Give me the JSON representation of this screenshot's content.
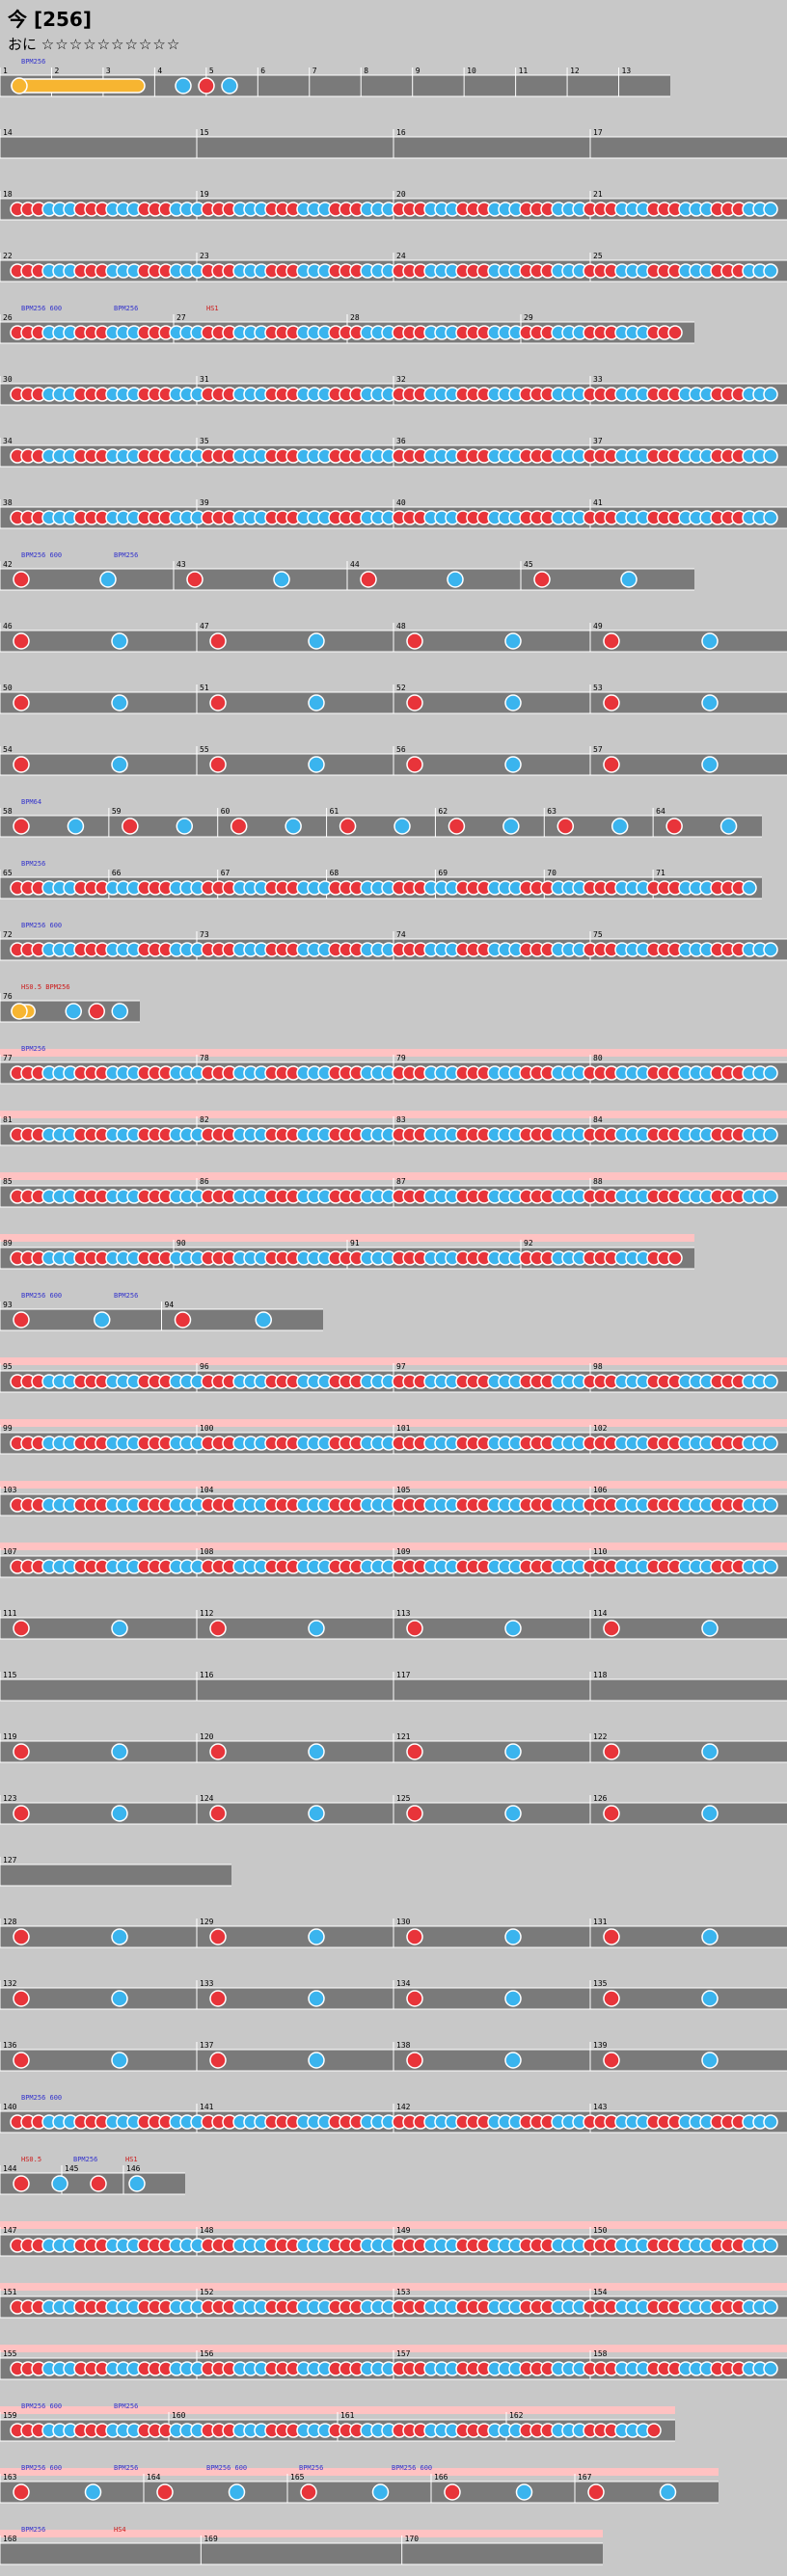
{
  "song": {
    "title": "今 [256]",
    "course_label": "おに",
    "stars": "☆☆☆☆☆☆☆☆☆☆"
  },
  "colors": {
    "don": "#e8343a",
    "ka": "#3ab4ee",
    "drumroll": "#f7b531",
    "bg": "#c8c8c8",
    "lane": "#7a7a7a",
    "gogo": "#ffc2c2",
    "bpm_text": "#3333cc",
    "event_text": "#cc1a1a"
  },
  "rows": [
    {
      "label": "r1",
      "measures": [
        "1",
        "2",
        "3",
        "4",
        "5",
        "6",
        "7",
        "8",
        "9",
        "10",
        "11",
        "12",
        "13"
      ],
      "pattern": "R",
      "gogo": false,
      "events": [
        {
          "text": "BPM256",
          "kind": "bpm"
        }
      ]
    },
    {
      "label": "r2",
      "measures": [
        "14",
        "15",
        "16",
        "17"
      ],
      "pattern": "E",
      "gogo": false,
      "events": []
    },
    {
      "label": "r3",
      "measures": [
        "18",
        "19",
        "20",
        "21"
      ],
      "pattern": "D",
      "gogo": false,
      "events": []
    },
    {
      "label": "r4",
      "measures": [
        "22",
        "23",
        "24",
        "25"
      ],
      "pattern": "D",
      "gogo": false,
      "events": []
    },
    {
      "label": "r5",
      "measures": [
        "26",
        "27",
        "28",
        "29"
      ],
      "pattern": "D",
      "gogo": false,
      "events": [
        {
          "text": "BPM256 600",
          "kind": "bpm"
        },
        {
          "text": "BPM256",
          "kind": "bpm"
        },
        {
          "text": "HS1",
          "kind": "hs"
        }
      ]
    },
    {
      "label": "r6",
      "measures": [
        "30",
        "31",
        "32",
        "33"
      ],
      "pattern": "D",
      "gogo": false,
      "events": []
    },
    {
      "label": "r7",
      "measures": [
        "34",
        "35",
        "36",
        "37"
      ],
      "pattern": "D",
      "gogo": false,
      "events": []
    },
    {
      "label": "r8",
      "measures": [
        "38",
        "39",
        "40",
        "41"
      ],
      "pattern": "D",
      "gogo": false,
      "events": []
    },
    {
      "label": "r9",
      "measures": [
        "42",
        "43",
        "44",
        "45"
      ],
      "pattern": "S",
      "gogo": false,
      "events": [
        {
          "text": "BPM256 600",
          "kind": "bpm"
        },
        {
          "text": "BPM256",
          "kind": "bpm"
        }
      ]
    },
    {
      "label": "r10",
      "measures": [
        "46",
        "47",
        "48",
        "49"
      ],
      "pattern": "S",
      "gogo": false,
      "events": []
    },
    {
      "label": "r11",
      "measures": [
        "50",
        "51",
        "52",
        "53"
      ],
      "pattern": "S",
      "gogo": false,
      "events": []
    },
    {
      "label": "r12",
      "measures": [
        "54",
        "55",
        "56",
        "57"
      ],
      "pattern": "S",
      "gogo": false,
      "events": []
    },
    {
      "label": "r13",
      "measures": [
        "58",
        "59",
        "60",
        "61",
        "62",
        "63",
        "64"
      ],
      "pattern": "S",
      "gogo": false,
      "events": [
        {
          "text": "BPM64",
          "kind": "bpm"
        }
      ]
    },
    {
      "label": "r14",
      "measures": [
        "65",
        "66",
        "67",
        "68",
        "69",
        "70",
        "71"
      ],
      "pattern": "D",
      "gogo": false,
      "events": [
        {
          "text": "BPM256",
          "kind": "bpm"
        }
      ]
    },
    {
      "label": "r15",
      "measures": [
        "72",
        "73",
        "74",
        "75"
      ],
      "pattern": "D",
      "gogo": false,
      "events": [
        {
          "text": "BPM256 600",
          "kind": "bpm"
        }
      ]
    },
    {
      "label": "r16",
      "measures": [
        "76"
      ],
      "pattern": "R",
      "gogo": false,
      "events": [
        {
          "text": "HS0.5 BPM256",
          "kind": "hs"
        }
      ]
    },
    {
      "label": "r17",
      "measures": [
        "77",
        "78",
        "79",
        "80"
      ],
      "pattern": "D",
      "gogo": true,
      "events": [
        {
          "text": "BPM256",
          "kind": "bpm"
        }
      ]
    },
    {
      "label": "r18",
      "measures": [
        "81",
        "82",
        "83",
        "84"
      ],
      "pattern": "D",
      "gogo": true,
      "events": []
    },
    {
      "label": "r19",
      "measures": [
        "85",
        "86",
        "87",
        "88"
      ],
      "pattern": "D",
      "gogo": true,
      "events": []
    },
    {
      "label": "r20",
      "measures": [
        "89",
        "90",
        "91",
        "92"
      ],
      "pattern": "D",
      "gogo": true,
      "events": []
    },
    {
      "label": "r21",
      "measures": [
        "93",
        "94"
      ],
      "pattern": "S",
      "gogo": false,
      "events": [
        {
          "text": "BPM256 600",
          "kind": "bpm"
        },
        {
          "text": "BPM256",
          "kind": "bpm"
        }
      ]
    },
    {
      "label": "r22",
      "measures": [
        "95",
        "96",
        "97",
        "98"
      ],
      "pattern": "D",
      "gogo": true,
      "events": []
    },
    {
      "label": "r23",
      "measures": [
        "99",
        "100",
        "101",
        "102"
      ],
      "pattern": "D",
      "gogo": true,
      "events": []
    },
    {
      "label": "r24",
      "measures": [
        "103",
        "104",
        "105",
        "106"
      ],
      "pattern": "D",
      "gogo": true,
      "events": []
    },
    {
      "label": "r25",
      "measures": [
        "107",
        "108",
        "109",
        "110"
      ],
      "pattern": "D",
      "gogo": true,
      "events": []
    },
    {
      "label": "r26",
      "measures": [
        "111",
        "112",
        "113",
        "114"
      ],
      "pattern": "S",
      "gogo": false,
      "events": []
    },
    {
      "label": "r27",
      "measures": [
        "115",
        "116",
        "117",
        "118"
      ],
      "pattern": "E",
      "gogo": false,
      "events": []
    },
    {
      "label": "r28",
      "measures": [
        "119",
        "120",
        "121",
        "122"
      ],
      "pattern": "S",
      "gogo": false,
      "events": []
    },
    {
      "label": "r29",
      "measures": [
        "123",
        "124",
        "125",
        "126"
      ],
      "pattern": "S",
      "gogo": false,
      "events": []
    },
    {
      "label": "r30",
      "measures": [
        "127"
      ],
      "pattern": "E",
      "gogo": false,
      "events": []
    },
    {
      "label": "r31",
      "measures": [
        "128",
        "129",
        "130",
        "131"
      ],
      "pattern": "S",
      "gogo": false,
      "events": []
    },
    {
      "label": "r32",
      "measures": [
        "132",
        "133",
        "134",
        "135"
      ],
      "pattern": "S",
      "gogo": false,
      "events": []
    },
    {
      "label": "r33",
      "measures": [
        "136",
        "137",
        "138",
        "139"
      ],
      "pattern": "S",
      "gogo": false,
      "events": []
    },
    {
      "label": "r34",
      "measures": [
        "140",
        "141",
        "142",
        "143"
      ],
      "pattern": "D",
      "gogo": false,
      "events": [
        {
          "text": "BPM256 600",
          "kind": "bpm"
        }
      ]
    },
    {
      "label": "r35",
      "measures": [
        "144",
        "145",
        "146"
      ],
      "pattern": "S",
      "gogo": false,
      "events": [
        {
          "text": "HS0.5",
          "kind": "hs"
        },
        {
          "text": "BPM256",
          "kind": "bpm"
        },
        {
          "text": "HS1",
          "kind": "hs"
        }
      ]
    },
    {
      "label": "r36",
      "measures": [
        "147",
        "148",
        "149",
        "150"
      ],
      "pattern": "D",
      "gogo": true,
      "events": []
    },
    {
      "label": "r37",
      "measures": [
        "151",
        "152",
        "153",
        "154"
      ],
      "pattern": "D",
      "gogo": true,
      "events": []
    },
    {
      "label": "r38",
      "measures": [
        "155",
        "156",
        "157",
        "158"
      ],
      "pattern": "D",
      "gogo": true,
      "events": []
    },
    {
      "label": "r39",
      "measures": [
        "159",
        "160",
        "161",
        "162"
      ],
      "pattern": "D",
      "gogo": true,
      "events": [
        {
          "text": "BPM256 600",
          "kind": "bpm"
        },
        {
          "text": "BPM256",
          "kind": "bpm"
        }
      ]
    },
    {
      "label": "r40",
      "measures": [
        "163",
        "164",
        "165",
        "166",
        "167"
      ],
      "pattern": "S",
      "gogo": true,
      "events": [
        {
          "text": "BPM256 600",
          "kind": "bpm"
        },
        {
          "text": "BPM256",
          "kind": "bpm"
        },
        {
          "text": "BPM256 600",
          "kind": "bpm"
        },
        {
          "text": "BPM256",
          "kind": "bpm"
        },
        {
          "text": "BPM256 600",
          "kind": "bpm"
        }
      ]
    },
    {
      "label": "r41",
      "measures": [
        "168",
        "169",
        "170"
      ],
      "pattern": "E",
      "gogo": true,
      "events": [
        {
          "text": "BPM256",
          "kind": "bpm"
        },
        {
          "text": "HS4",
          "kind": "hs"
        }
      ]
    }
  ]
}
